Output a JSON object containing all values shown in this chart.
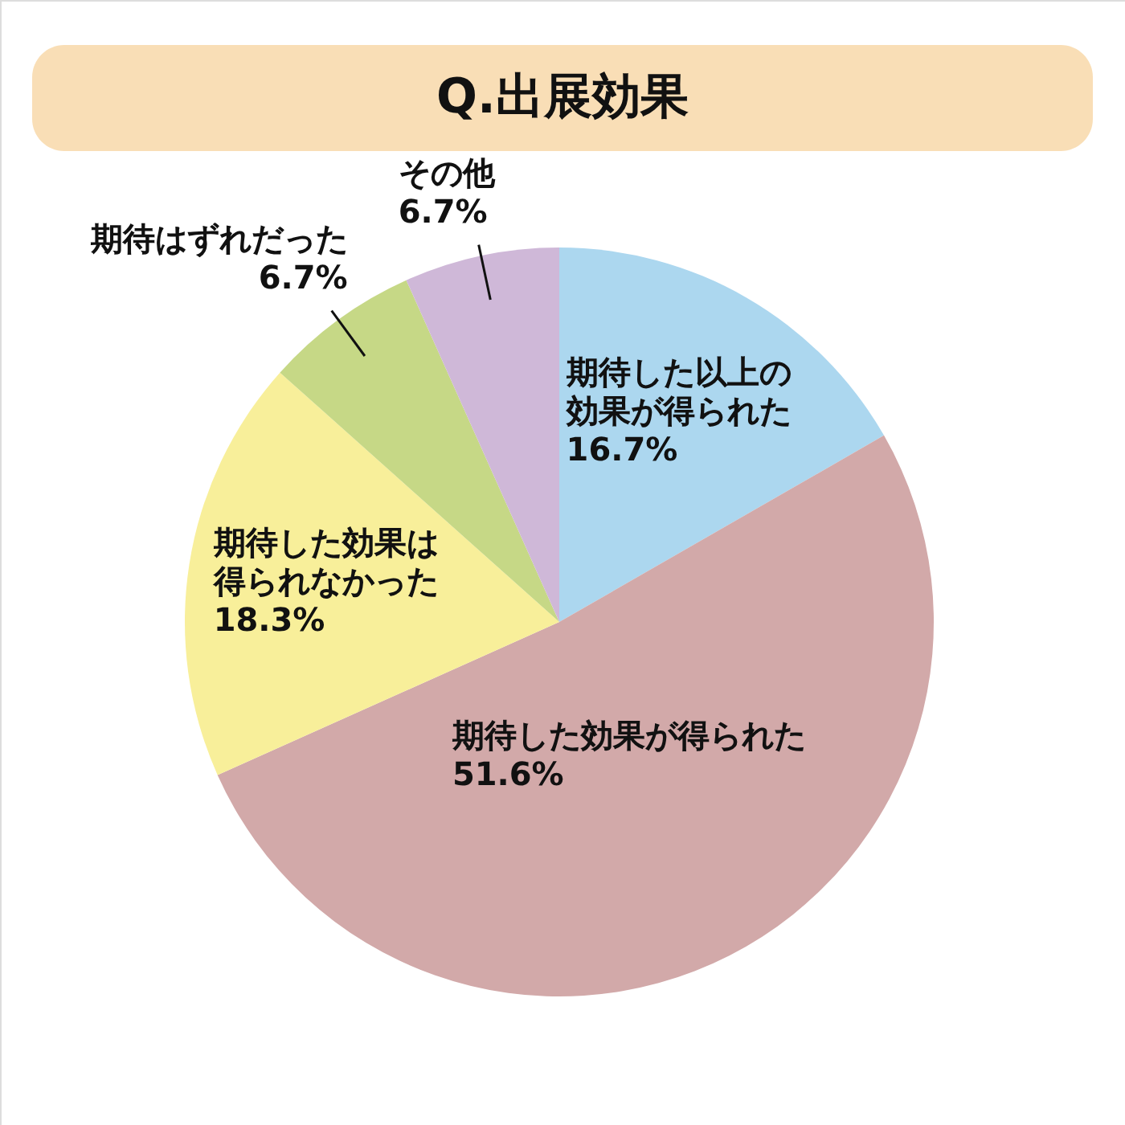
{
  "chart_data": {
    "type": "pie",
    "title": "Q.出展効果",
    "categories": [
      "期待した以上の効果が得られた",
      "期待した効果が得られた",
      "期待した効果は得られなかった",
      "期待はずれだった",
      "その他"
    ],
    "values": [
      16.7,
      51.6,
      18.3,
      6.7,
      6.7
    ],
    "colors": [
      "#acd7ef",
      "#d2a9a9",
      "#f8ef9a",
      "#c6d886",
      "#cfb8d8"
    ],
    "value_labels": [
      "16.7%",
      "51.6%",
      "18.3%",
      "6.7%",
      "6.7%"
    ]
  }
}
